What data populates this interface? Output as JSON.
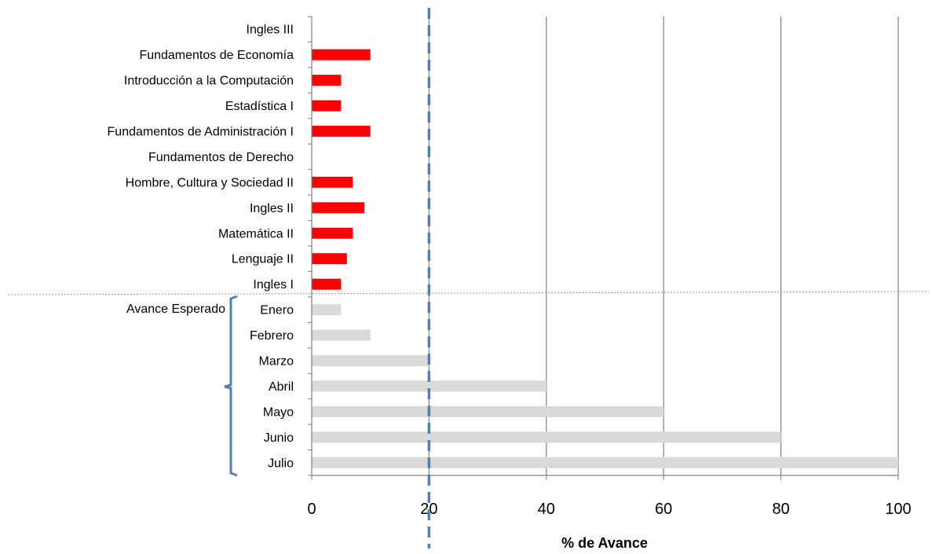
{
  "chart_data": {
    "type": "bar",
    "orientation": "horizontal",
    "xlabel": "% de Avance",
    "xlim": [
      0,
      100
    ],
    "xticks": [
      0,
      20,
      40,
      60,
      80,
      100
    ],
    "grid": true,
    "reference_line": {
      "value": 20,
      "style": "dashed",
      "color": "#4F81BD"
    },
    "series": [
      {
        "color": "#FF0000",
        "categories": [
          "Ingles III",
          "Fundamentos de Economía",
          "Introducción a la Computación",
          "Estadística I",
          "Fundamentos de Administración I",
          "Fundamentos de Derecho",
          "Hombre, Cultura y Sociedad II",
          "Ingles II",
          "Matemática II",
          "Lenguaje II",
          "Ingles I"
        ],
        "values": [
          0,
          10,
          5,
          5,
          10,
          0,
          7,
          9,
          7,
          6,
          5
        ]
      },
      {
        "color": "#D9D9D9",
        "group_label": "Avance Esperado",
        "categories": [
          "Enero",
          "Febrero",
          "Marzo",
          "Abril",
          "Mayo",
          "Junio",
          "Julio"
        ],
        "values": [
          5,
          10,
          20,
          40,
          60,
          80,
          100
        ]
      }
    ]
  }
}
